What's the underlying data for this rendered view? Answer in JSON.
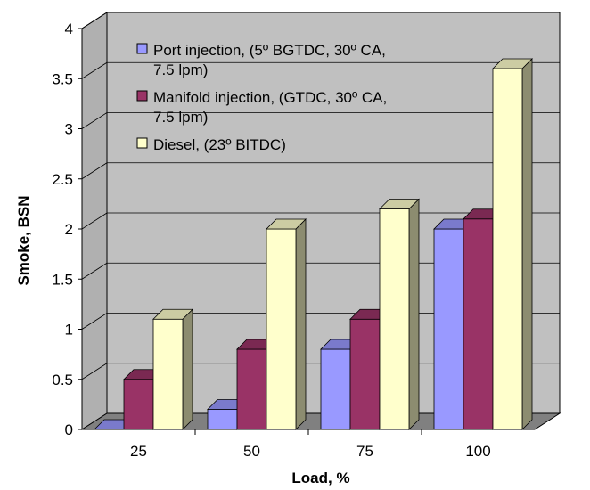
{
  "chart_data": {
    "type": "bar",
    "categories": [
      "25",
      "50",
      "75",
      "100"
    ],
    "series": [
      {
        "name": "Port injection, (5º BGTDC, 30º CA, 7.5 lpm)",
        "legend_lines": [
          "Port injection, (5º BGTDC, 30º CA,",
          "7.5 lpm)"
        ],
        "values": [
          0,
          0.2,
          0.8,
          2.0
        ],
        "color": "#9999ff"
      },
      {
        "name": "Manifold injection, (GTDC, 30º CA, 7.5 lpm)",
        "legend_lines": [
          "Manifold injection, (GTDC, 30º CA,",
          "7.5 lpm)"
        ],
        "values": [
          0.5,
          0.8,
          1.1,
          2.1
        ],
        "color": "#993366"
      },
      {
        "name": "Diesel, (23º BITDC)",
        "legend_lines": [
          "Diesel, (23º BITDC)"
        ],
        "values": [
          1.1,
          2.0,
          2.2,
          3.6
        ],
        "color": "#ffffcc"
      }
    ],
    "xlabel": "Load, %",
    "ylabel": "Smoke, BSN",
    "ylim": [
      0,
      4
    ],
    "yticks": [
      "0",
      "0.5",
      "1",
      "1.5",
      "2",
      "2.5",
      "3",
      "3.5",
      "4"
    ],
    "grid": true,
    "legend_position": "top-left",
    "wall_color": "#c0c0c0",
    "floor_color": "#808080"
  }
}
